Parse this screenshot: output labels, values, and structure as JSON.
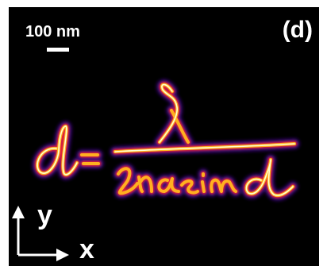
{
  "image": {
    "scale_bar_label": "100 nm",
    "panel_label": "(d)",
    "axis_y_label": "y",
    "axis_x_label": "x",
    "colormap": {
      "background": "#000000",
      "outer_glow": "#3b0a7a",
      "mid": "#e0203a",
      "inner": "#ffb020",
      "core": "#ffffd0",
      "annotation": "#ffffff"
    }
  }
}
